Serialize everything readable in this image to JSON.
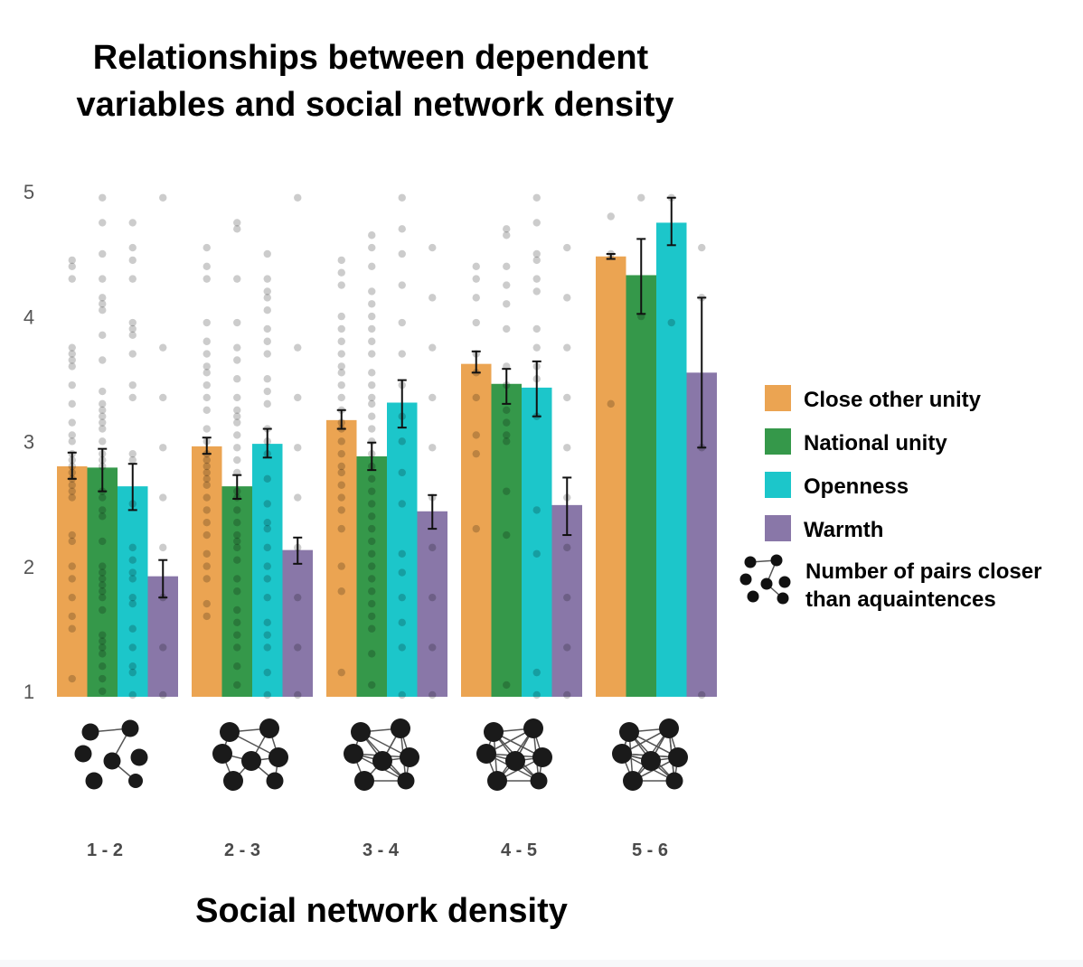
{
  "chart_data": {
    "type": "bar",
    "title": [
      "Relationships between dependent",
      "variables and social network density"
    ],
    "xlabel": "Social network density",
    "ylabel": "",
    "ylim": [
      1,
      5
    ],
    "yticks": [
      "1",
      "2",
      "3",
      "4",
      "5"
    ],
    "categories": [
      "1 - 2",
      "2 - 3",
      "3 - 4",
      "4 - 5",
      "5 - 6"
    ],
    "series": [
      {
        "name": "Close other unity",
        "color": "#eba452",
        "values": [
          2.83,
          2.99,
          3.2,
          3.65,
          4.51
        ],
        "err_low": [
          2.73,
          2.93,
          3.13,
          3.58,
          4.49
        ],
        "err_high": [
          2.94,
          3.06,
          3.28,
          3.75,
          4.53
        ],
        "points": [
          [
            1.13,
            1.53,
            1.63,
            1.78,
            1.93,
            2.03,
            2.23,
            2.28,
            2.58,
            2.63,
            2.68,
            2.73,
            2.78,
            2.83,
            2.88,
            2.93,
            3.03,
            3.08,
            3.18,
            3.33,
            3.48,
            3.63,
            3.68,
            3.73,
            3.78,
            4.33,
            4.43,
            4.48
          ],
          [
            1.63,
            1.73,
            1.93,
            2.03,
            2.13,
            2.28,
            2.38,
            2.48,
            2.58,
            2.68,
            2.73,
            2.78,
            2.83,
            2.88,
            2.93,
            3.03,
            3.13,
            3.28,
            3.38,
            3.48,
            3.58,
            3.63,
            3.73,
            3.83,
            3.98,
            4.33,
            4.43,
            4.58
          ],
          [
            1.18,
            1.83,
            2.03,
            2.33,
            2.48,
            2.58,
            2.68,
            2.78,
            2.83,
            2.93,
            3.03,
            3.13,
            3.18,
            3.28,
            3.38,
            3.48,
            3.58,
            3.63,
            3.73,
            3.83,
            3.93,
            4.03,
            4.28,
            4.38,
            4.48
          ],
          [
            2.33,
            2.93,
            3.08,
            3.38,
            3.58,
            3.73,
            3.98,
            4.18,
            4.33,
            4.43
          ],
          [
            3.33,
            4.53,
            4.83
          ]
        ]
      },
      {
        "name": "National unity",
        "color": "#35984a",
        "values": [
          2.82,
          2.67,
          2.91,
          3.49,
          4.36
        ],
        "err_low": [
          2.63,
          2.57,
          2.8,
          3.33,
          4.05
        ],
        "err_high": [
          2.97,
          2.76,
          3.02,
          3.61,
          4.65
        ],
        "points": [
          [
            1.03,
            1.13,
            1.23,
            1.33,
            1.38,
            1.43,
            1.48,
            1.68,
            1.78,
            1.83,
            1.88,
            1.93,
            1.98,
            2.03,
            2.23,
            2.43,
            2.48,
            2.58,
            2.63,
            2.83,
            2.88,
            2.93,
            3.03,
            3.13,
            3.18,
            3.23,
            3.28,
            3.33,
            3.43,
            3.68,
            3.88,
            4.08,
            4.13,
            4.18,
            4.33,
            4.53,
            4.78,
            4.98
          ],
          [
            1.08,
            1.23,
            1.38,
            1.48,
            1.58,
            1.68,
            1.83,
            1.93,
            2.08,
            2.18,
            2.23,
            2.28,
            2.38,
            2.48,
            2.58,
            2.63,
            2.78,
            2.88,
            2.98,
            3.08,
            3.18,
            3.23,
            3.28,
            3.38,
            3.53,
            3.68,
            3.78,
            3.98,
            4.33,
            4.73,
            4.78
          ],
          [
            1.08,
            1.33,
            1.53,
            1.63,
            1.73,
            1.83,
            1.93,
            2.03,
            2.13,
            2.23,
            2.33,
            2.43,
            2.53,
            2.63,
            2.73,
            2.83,
            2.93,
            3.03,
            3.13,
            3.23,
            3.33,
            3.38,
            3.48,
            3.58,
            3.73,
            3.83,
            3.93,
            4.03,
            4.13,
            4.23,
            4.43,
            4.58,
            4.68
          ],
          [
            1.08,
            2.28,
            2.63,
            3.03,
            3.08,
            3.18,
            3.28,
            3.48,
            3.63,
            3.93,
            4.13,
            4.28,
            4.43,
            4.68,
            4.73
          ],
          [
            4.03,
            4.98
          ]
        ]
      },
      {
        "name": "Openness",
        "color": "#1cc6ca",
        "values": [
          2.67,
          3.01,
          3.34,
          3.46,
          4.78
        ],
        "err_low": [
          2.48,
          2.9,
          3.14,
          3.23,
          4.6
        ],
        "err_high": [
          2.85,
          3.13,
          3.52,
          3.67,
          4.98
        ],
        "points": [
          [
            1.0,
            1.18,
            1.23,
            1.38,
            1.53,
            1.73,
            1.78,
            1.93,
            1.98,
            2.08,
            2.18,
            2.53,
            2.88,
            2.93,
            3.38,
            3.48,
            3.73,
            3.88,
            3.93,
            3.98,
            4.33,
            4.48,
            4.58,
            4.78
          ],
          [
            1.0,
            1.18,
            1.38,
            1.48,
            1.58,
            1.78,
            1.93,
            2.03,
            2.18,
            2.33,
            2.38,
            2.53,
            2.73,
            2.93,
            3.03,
            3.13,
            3.33,
            3.43,
            3.53,
            3.73,
            3.83,
            3.93,
            4.08,
            4.18,
            4.23,
            4.33,
            4.53
          ],
          [
            1.0,
            1.38,
            1.58,
            1.78,
            1.98,
            2.13,
            2.53,
            2.78,
            3.03,
            3.23,
            3.48,
            3.73,
            3.98,
            4.28,
            4.53,
            4.73,
            4.98
          ],
          [
            1.0,
            1.18,
            2.13,
            2.48,
            3.23,
            3.53,
            3.63,
            3.78,
            3.93,
            4.23,
            4.33,
            4.48,
            4.53,
            4.78,
            4.98
          ],
          [
            3.98,
            4.98
          ]
        ]
      },
      {
        "name": "Warmth",
        "color": "#8977a8",
        "values": [
          1.95,
          2.16,
          2.47,
          2.52,
          3.58
        ],
        "err_low": [
          1.78,
          2.05,
          2.33,
          2.28,
          2.98
        ],
        "err_high": [
          2.08,
          2.26,
          2.6,
          2.74,
          4.18
        ],
        "points": [
          [
            1.0,
            1.38,
            1.78,
            2.18,
            2.58,
            2.98,
            3.38,
            3.78,
            4.98
          ],
          [
            1.0,
            1.38,
            1.78,
            2.18,
            2.58,
            2.98,
            3.38,
            3.78,
            4.98
          ],
          [
            1.0,
            1.38,
            1.78,
            2.18,
            2.58,
            2.98,
            3.38,
            3.78,
            4.18,
            4.58
          ],
          [
            1.0,
            1.38,
            1.78,
            2.18,
            2.58,
            2.98,
            3.38,
            3.78,
            4.18,
            4.58
          ],
          [
            1.0,
            2.98,
            4.18,
            4.58
          ]
        ]
      }
    ],
    "network_icon_edges_per_category": [
      4,
      11,
      18,
      24,
      30
    ],
    "legend": {
      "placement": "right",
      "items": [
        "Close other unity",
        "National unity",
        "Openness",
        "Warmth"
      ],
      "network_label": [
        "Number of pairs closer",
        "than aquaintences"
      ]
    },
    "grid": false
  }
}
